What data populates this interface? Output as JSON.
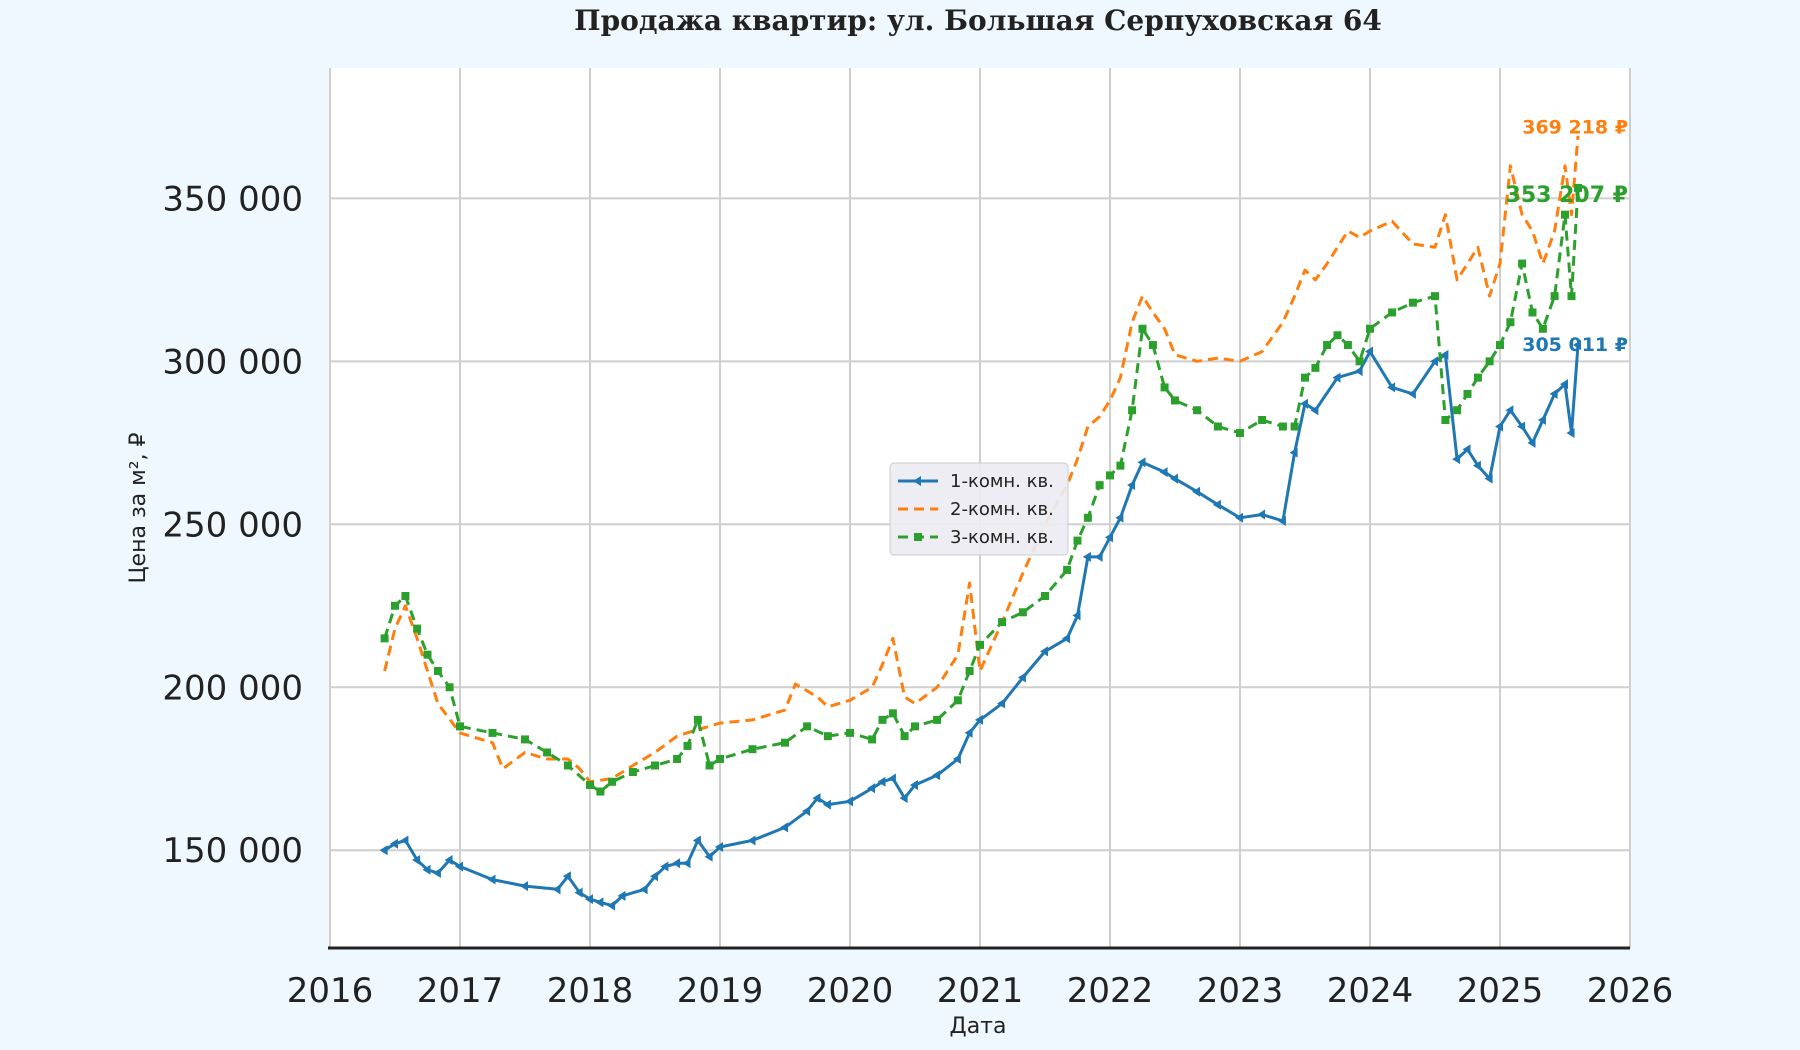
{
  "chart_data": {
    "type": "line",
    "title": "Продажа квартир: ул. Большая Серпуховская 64",
    "xlabel": "Дата",
    "ylabel": "Цена за м², ₽",
    "xlim": [
      2016,
      2026
    ],
    "ylim": [
      120000,
      390000
    ],
    "x_ticks": [
      2016,
      2017,
      2018,
      2019,
      2020,
      2021,
      2022,
      2023,
      2024,
      2025,
      2026
    ],
    "x_tick_labels": [
      "2016",
      "2017",
      "2018",
      "2019",
      "2020",
      "2021",
      "2022",
      "2023",
      "2024",
      "2025",
      "2026"
    ],
    "y_ticks": [
      150000,
      200000,
      250000,
      300000,
      350000
    ],
    "y_tick_labels": [
      "150 000",
      "200 000",
      "250 000",
      "300 000",
      "350 000"
    ],
    "grid": true,
    "legend_position": "center",
    "series": [
      {
        "name": "1-комн. кв.",
        "color": "#1f77b4",
        "style": "solid",
        "marker": "triangle",
        "end_label": "305 011 ₽",
        "x": [
          2016.42,
          2016.5,
          2016.58,
          2016.67,
          2016.75,
          2016.83,
          2016.92,
          2017.0,
          2017.25,
          2017.5,
          2017.75,
          2017.83,
          2017.92,
          2018.0,
          2018.08,
          2018.17,
          2018.25,
          2018.42,
          2018.5,
          2018.58,
          2018.67,
          2018.75,
          2018.83,
          2018.92,
          2019.0,
          2019.25,
          2019.5,
          2019.67,
          2019.75,
          2019.83,
          2020.0,
          2020.17,
          2020.25,
          2020.33,
          2020.42,
          2020.5,
          2020.67,
          2020.83,
          2020.92,
          2021.0,
          2021.17,
          2021.33,
          2021.5,
          2021.67,
          2021.75,
          2021.83,
          2021.92,
          2022.0,
          2022.08,
          2022.17,
          2022.25,
          2022.42,
          2022.5,
          2022.67,
          2022.83,
          2023.0,
          2023.17,
          2023.33,
          2023.42,
          2023.5,
          2023.58,
          2023.75,
          2023.92,
          2024.0,
          2024.17,
          2024.33,
          2024.5,
          2024.58,
          2024.67,
          2024.75,
          2024.83,
          2024.92,
          2025.0,
          2025.08,
          2025.17,
          2025.25,
          2025.33,
          2025.42,
          2025.5,
          2025.55,
          2025.6
        ],
        "values": [
          150000,
          152000,
          153000,
          147000,
          144000,
          143000,
          147000,
          145000,
          141000,
          139000,
          138000,
          142000,
          137000,
          135000,
          134000,
          133000,
          136000,
          138000,
          142000,
          145000,
          146000,
          146000,
          153000,
          148000,
          151000,
          153000,
          157000,
          162000,
          166000,
          164000,
          165000,
          169000,
          171000,
          172000,
          166000,
          170000,
          173000,
          178000,
          186000,
          190000,
          195000,
          203000,
          211000,
          215000,
          222000,
          240000,
          240000,
          246000,
          252000,
          262000,
          269000,
          266000,
          264000,
          260000,
          256000,
          252000,
          253000,
          251000,
          272000,
          287000,
          285000,
          295000,
          297000,
          303000,
          292000,
          290000,
          300000,
          302000,
          270000,
          273000,
          268000,
          264000,
          280000,
          285000,
          280000,
          275000,
          282000,
          290000,
          293000,
          278000,
          305011
        ]
      },
      {
        "name": "2-комн. кв.",
        "color": "#ff7f0e",
        "style": "dashed",
        "marker": "none",
        "end_label": "369 218 ₽",
        "x": [
          2016.42,
          2016.5,
          2016.58,
          2016.67,
          2016.83,
          2017.0,
          2017.25,
          2017.33,
          2017.5,
          2017.67,
          2017.83,
          2017.92,
          2018.0,
          2018.17,
          2018.33,
          2018.5,
          2018.67,
          2018.83,
          2019.0,
          2019.25,
          2019.5,
          2019.58,
          2019.75,
          2019.83,
          2020.0,
          2020.17,
          2020.25,
          2020.33,
          2020.42,
          2020.5,
          2020.67,
          2020.83,
          2020.92,
          2021.0,
          2021.17,
          2021.33,
          2021.5,
          2021.67,
          2021.75,
          2021.83,
          2021.92,
          2022.0,
          2022.08,
          2022.17,
          2022.25,
          2022.33,
          2022.42,
          2022.5,
          2022.67,
          2022.83,
          2023.0,
          2023.17,
          2023.33,
          2023.42,
          2023.5,
          2023.58,
          2023.67,
          2023.75,
          2023.83,
          2023.92,
          2024.0,
          2024.17,
          2024.33,
          2024.5,
          2024.58,
          2024.67,
          2024.75,
          2024.83,
          2024.92,
          2025.0,
          2025.08,
          2025.17,
          2025.25,
          2025.33,
          2025.42,
          2025.5,
          2025.55,
          2025.6
        ],
        "values": [
          205000,
          218000,
          225000,
          215000,
          195000,
          186000,
          183000,
          175000,
          180000,
          178000,
          178000,
          175000,
          171000,
          172000,
          176000,
          180000,
          185000,
          187000,
          189000,
          190000,
          193000,
          201000,
          197000,
          194000,
          196000,
          200000,
          207000,
          215000,
          197000,
          195000,
          200000,
          210000,
          232000,
          205000,
          220000,
          235000,
          250000,
          262000,
          270000,
          280000,
          283000,
          288000,
          295000,
          312000,
          320000,
          315000,
          310000,
          302000,
          300000,
          301000,
          300000,
          303000,
          312000,
          320000,
          328000,
          325000,
          330000,
          335000,
          340000,
          338000,
          340000,
          343000,
          336000,
          335000,
          345000,
          325000,
          330000,
          335000,
          320000,
          330000,
          360000,
          345000,
          340000,
          330000,
          340000,
          360000,
          345000,
          369218
        ]
      },
      {
        "name": "3-комн. кв.",
        "color": "#2ca02c",
        "style": "dashed",
        "marker": "square",
        "end_label": "353 207 ₽",
        "x": [
          2016.42,
          2016.5,
          2016.58,
          2016.67,
          2016.75,
          2016.83,
          2016.92,
          2017.0,
          2017.25,
          2017.5,
          2017.67,
          2017.83,
          2018.0,
          2018.08,
          2018.17,
          2018.33,
          2018.5,
          2018.67,
          2018.75,
          2018.83,
          2018.92,
          2019.0,
          2019.25,
          2019.5,
          2019.67,
          2019.83,
          2020.0,
          2020.17,
          2020.25,
          2020.33,
          2020.42,
          2020.5,
          2020.67,
          2020.83,
          2020.92,
          2021.0,
          2021.17,
          2021.33,
          2021.5,
          2021.67,
          2021.75,
          2021.83,
          2021.92,
          2022.0,
          2022.08,
          2022.17,
          2022.25,
          2022.33,
          2022.42,
          2022.5,
          2022.67,
          2022.83,
          2023.0,
          2023.17,
          2023.33,
          2023.42,
          2023.5,
          2023.58,
          2023.67,
          2023.75,
          2023.83,
          2023.92,
          2024.0,
          2024.17,
          2024.33,
          2024.5,
          2024.58,
          2024.67,
          2024.75,
          2024.83,
          2024.92,
          2025.0,
          2025.08,
          2025.17,
          2025.25,
          2025.33,
          2025.42,
          2025.5,
          2025.55,
          2025.6
        ],
        "values": [
          215000,
          225000,
          228000,
          218000,
          210000,
          205000,
          200000,
          188000,
          186000,
          184000,
          180000,
          176000,
          170000,
          168000,
          171000,
          174000,
          176000,
          178000,
          182000,
          190000,
          176000,
          178000,
          181000,
          183000,
          188000,
          185000,
          186000,
          184000,
          190000,
          192000,
          185000,
          188000,
          190000,
          196000,
          205000,
          213000,
          220000,
          223000,
          228000,
          236000,
          245000,
          252000,
          262000,
          265000,
          268000,
          285000,
          310000,
          305000,
          292000,
          288000,
          285000,
          280000,
          278000,
          282000,
          280000,
          280000,
          295000,
          298000,
          305000,
          308000,
          305000,
          300000,
          310000,
          315000,
          318000,
          320000,
          282000,
          285000,
          290000,
          295000,
          300000,
          305000,
          312000,
          330000,
          315000,
          310000,
          320000,
          345000,
          320000,
          353207
        ]
      }
    ]
  }
}
